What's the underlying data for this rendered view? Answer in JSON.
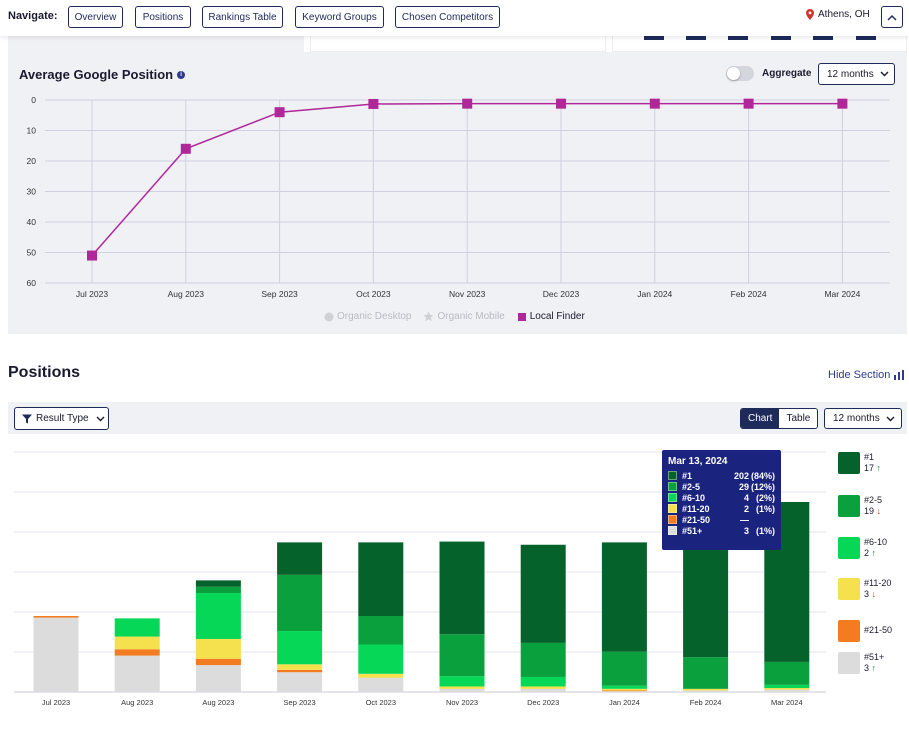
{
  "nav": {
    "label": "Navigate:",
    "buttons": [
      "Overview",
      "Positions",
      "Rankings Table",
      "Keyword Groups",
      "Chosen Competitors"
    ],
    "location": "Athens, OH"
  },
  "avg_position": {
    "title": "Average Google Position",
    "aggregate_label": "Aggregate",
    "period": "12 months",
    "legend": [
      "Organic Desktop",
      "Organic Mobile",
      "Local Finder"
    ]
  },
  "positions": {
    "title": "Positions",
    "hide_section": "Hide Section",
    "filter_label": "Result Type",
    "view_chart": "Chart",
    "view_table": "Table",
    "period": "12 months",
    "legend": [
      {
        "label": "#1",
        "count": "17",
        "trend": "up"
      },
      {
        "label": "#2-5",
        "count": "19",
        "trend": "down"
      },
      {
        "label": "#6-10",
        "count": "2",
        "trend": "up"
      },
      {
        "label": "#11-20",
        "count": "3",
        "trend": "down"
      },
      {
        "label": "#21-50",
        "count": "",
        "trend": ""
      },
      {
        "label": "#51+",
        "count": "3",
        "trend": "up"
      }
    ],
    "tooltip": {
      "date": "Mar 13, 2024",
      "rows": [
        {
          "name": "#1",
          "count": "202",
          "pct": "(84%)"
        },
        {
          "name": "#2-5",
          "count": "29",
          "pct": "(12%)"
        },
        {
          "name": "#6-10",
          "count": "4",
          "pct": "(2%)"
        },
        {
          "name": "#11-20",
          "count": "2",
          "pct": "(1%)"
        },
        {
          "name": "#21-50",
          "count": "—",
          "pct": ""
        },
        {
          "name": "#51+",
          "count": "3",
          "pct": "(1%)"
        }
      ]
    }
  },
  "colors": {
    "navy": "#1e2a5a",
    "line": "#b0279a",
    "rank1": "#05622a",
    "rank2_5": "#0ba03e",
    "rank6_10": "#07d757",
    "rank11_20": "#f5e04d",
    "rank21_50": "#f47c20",
    "rank51": "#dcdcdc"
  },
  "chart_data": [
    {
      "type": "line",
      "title": "Average Google Position",
      "x": [
        "Jul 2023",
        "Aug 2023",
        "Sep 2023",
        "Oct 2023",
        "Nov 2023",
        "Dec 2023",
        "Jan 2024",
        "Feb 2024",
        "Mar 2024"
      ],
      "series": [
        {
          "name": "Local Finder",
          "values": [
            51,
            16,
            4,
            1.3,
            1.2,
            1.2,
            1.2,
            1.2,
            1.2
          ]
        }
      ],
      "yticks": [
        0,
        10,
        20,
        30,
        40,
        50,
        60
      ],
      "ylim": [
        0,
        60
      ],
      "y_inverted": true,
      "grid": true,
      "legend": "bottom"
    },
    {
      "type": "bar",
      "stacked": true,
      "categories": [
        "Jul 2023",
        "Aug 2023",
        "Aug 2023",
        "Sep 2023",
        "Oct 2023",
        "Nov 2023",
        "Dec 2023",
        "Jan 2024",
        "Feb 2024",
        "Mar 2024"
      ],
      "series": [
        {
          "name": "#51+",
          "values": [
            94,
            46,
            34,
            25,
            18,
            4,
            4,
            1,
            2,
            3
          ]
        },
        {
          "name": "#21-50",
          "values": [
            2,
            8,
            8,
            3,
            0,
            0,
            0,
            1,
            0,
            0
          ]
        },
        {
          "name": "#11-20",
          "values": [
            0,
            16,
            25,
            7,
            5,
            3,
            3,
            2,
            2,
            2
          ]
        },
        {
          "name": "#6-10",
          "values": [
            0,
            23,
            58,
            42,
            37,
            13,
            12,
            4,
            0,
            4
          ]
        },
        {
          "name": "#2-5",
          "values": [
            0,
            0,
            8,
            71,
            36,
            53,
            43,
            43,
            40,
            29
          ]
        },
        {
          "name": "#1",
          "values": [
            0,
            0,
            8,
            41,
            93,
            117,
            124,
            138,
            157,
            202
          ]
        }
      ],
      "legend": "right"
    }
  ]
}
